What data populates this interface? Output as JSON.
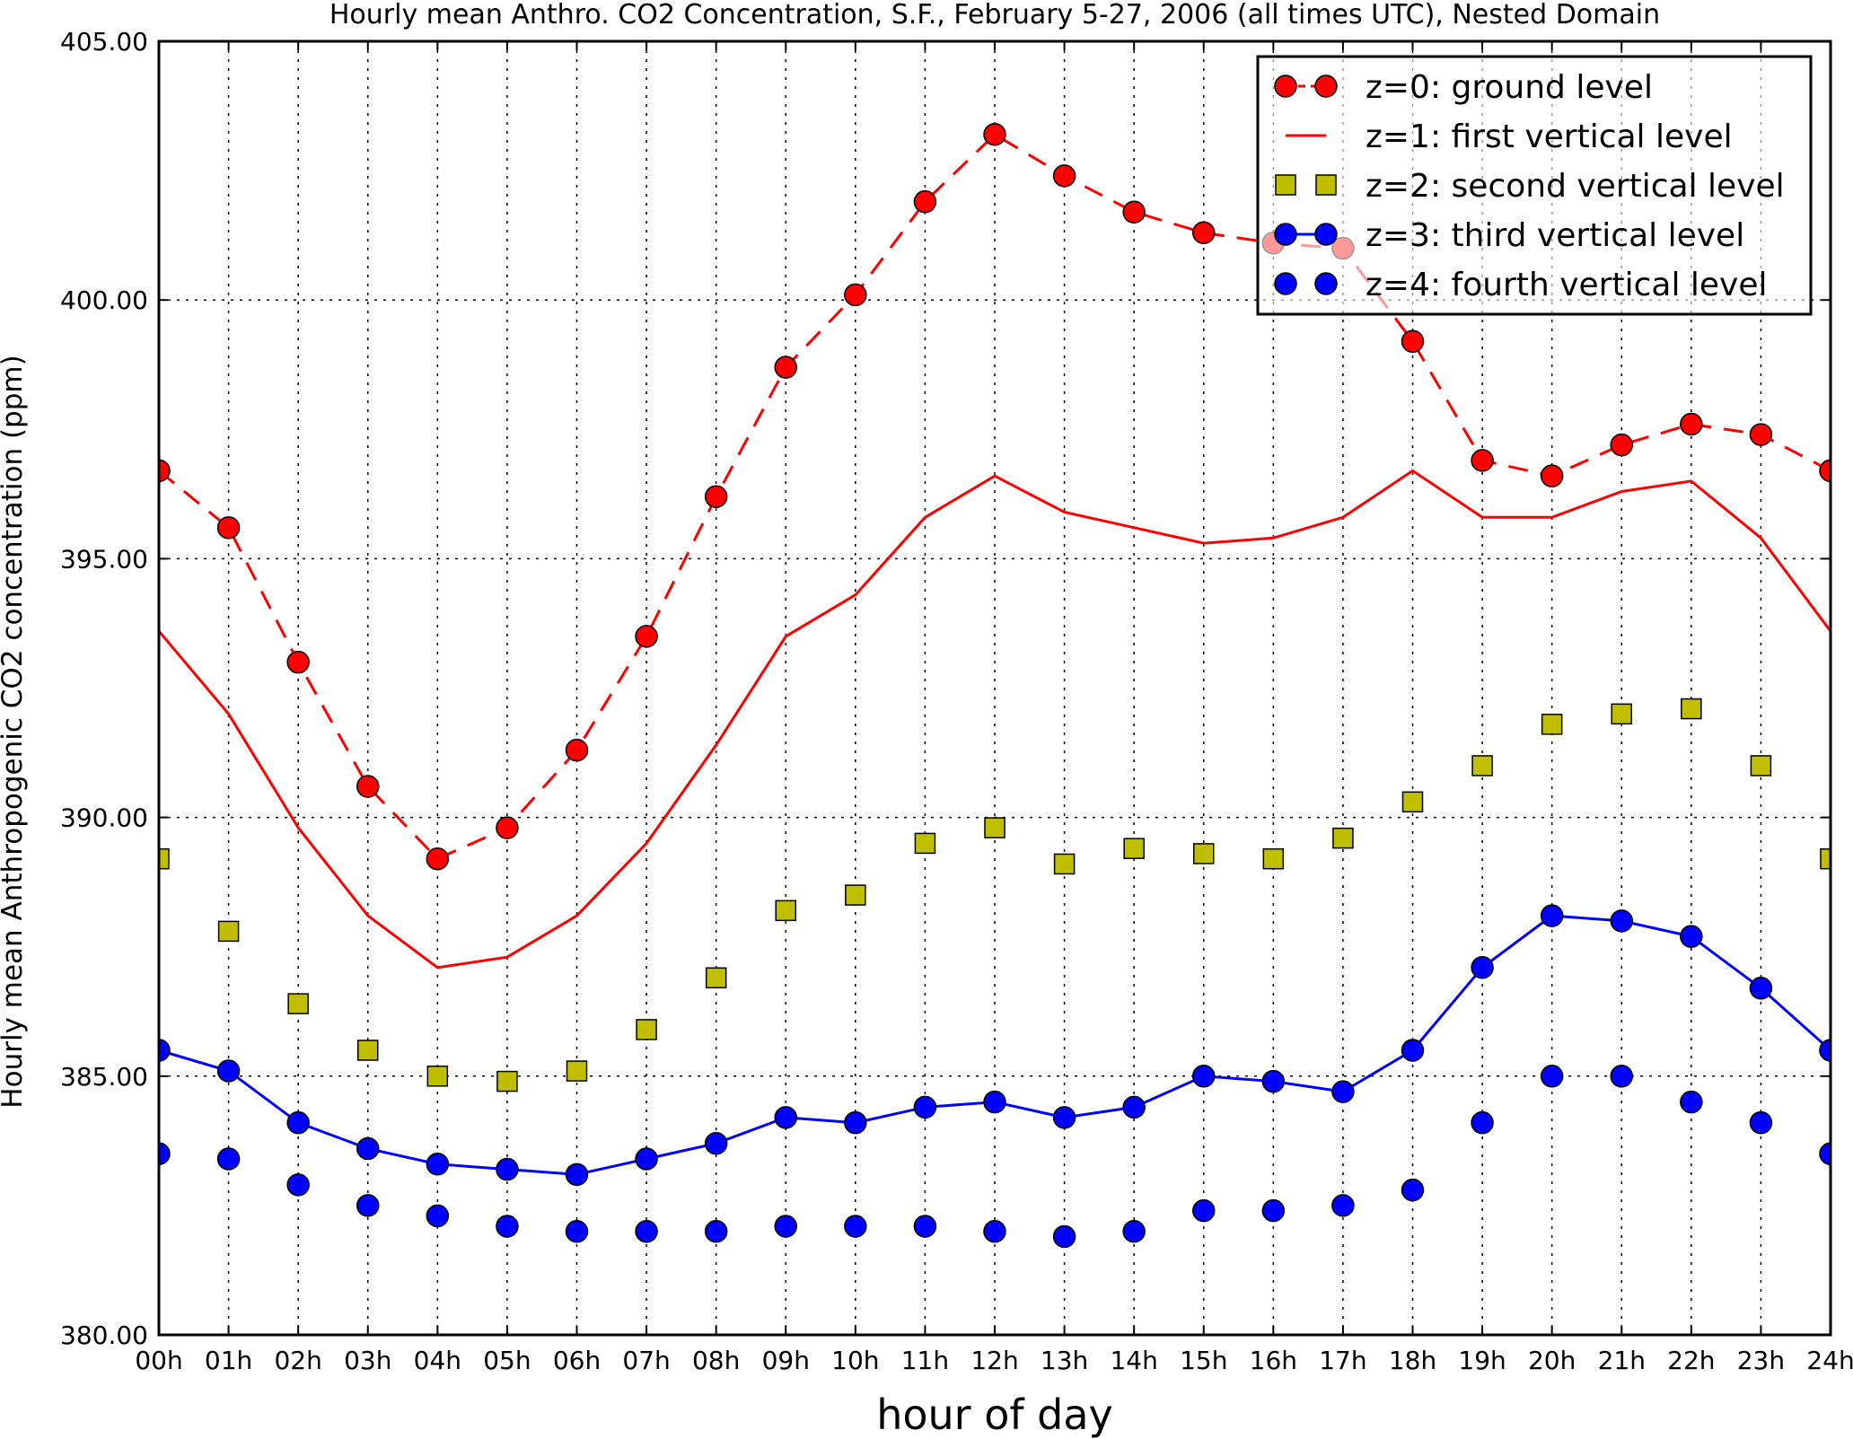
{
  "chart_data": {
    "type": "line",
    "title": "Hourly mean Anthro. CO2 Concentration, S.F., February 5-27, 2006 (all times UTC), Nested Domain",
    "xlabel": "hour of day",
    "ylabel": "Hourly mean Anthropogenic CO2 concentration (ppm)",
    "x": [
      0,
      1,
      2,
      3,
      4,
      5,
      6,
      7,
      8,
      9,
      10,
      11,
      12,
      13,
      14,
      15,
      16,
      17,
      18,
      19,
      20,
      21,
      22,
      23,
      24
    ],
    "xtick_labels": [
      "00h",
      "01h",
      "02h",
      "03h",
      "04h",
      "05h",
      "06h",
      "07h",
      "08h",
      "09h",
      "10h",
      "11h",
      "12h",
      "13h",
      "14h",
      "15h",
      "16h",
      "17h",
      "18h",
      "19h",
      "20h",
      "21h",
      "22h",
      "23h",
      "24h"
    ],
    "xlim": [
      0,
      24
    ],
    "ylim": [
      380,
      405
    ],
    "yticks": [
      380,
      385,
      390,
      395,
      400,
      405
    ],
    "ytick_labels": [
      "380.00",
      "385.00",
      "390.00",
      "395.00",
      "400.00",
      "405.00"
    ],
    "grid": true,
    "legend_position": "top-right",
    "series": [
      {
        "name": "z=0: ground level",
        "color": "#ff0000",
        "style": "dashed-line-circles",
        "values": [
          396.7,
          395.6,
          393.0,
          390.6,
          389.2,
          389.8,
          391.3,
          393.5,
          396.2,
          398.7,
          400.1,
          401.9,
          403.2,
          402.4,
          401.7,
          401.3,
          401.1,
          401.0,
          399.2,
          396.9,
          396.6,
          397.2,
          397.6,
          397.4,
          396.7
        ]
      },
      {
        "name": "z=1: first vertical level",
        "color": "#ff0000",
        "style": "solid-line",
        "values": [
          393.6,
          392.0,
          389.8,
          388.1,
          387.1,
          387.3,
          388.1,
          389.5,
          391.4,
          393.5,
          394.3,
          395.8,
          396.6,
          395.9,
          395.6,
          395.3,
          395.4,
          395.8,
          396.7,
          395.8,
          395.8,
          396.3,
          396.5,
          395.4,
          393.6
        ]
      },
      {
        "name": "z=2: second vertical level",
        "color": "#bfbf00",
        "style": "squares",
        "values": [
          389.2,
          387.8,
          386.4,
          385.5,
          385.0,
          384.9,
          385.1,
          385.9,
          386.9,
          388.2,
          388.5,
          389.5,
          389.8,
          389.1,
          389.4,
          389.3,
          389.2,
          389.6,
          390.3,
          391.0,
          391.8,
          392.0,
          392.1,
          391.0,
          389.2
        ]
      },
      {
        "name": "z=3: third vertical level",
        "color": "#0000ff",
        "style": "solid-line-circles",
        "values": [
          385.5,
          385.1,
          384.1,
          383.6,
          383.3,
          383.2,
          383.1,
          383.4,
          383.7,
          384.2,
          384.1,
          384.4,
          384.5,
          384.2,
          384.4,
          385.0,
          384.9,
          384.7,
          385.5,
          387.1,
          388.1,
          388.0,
          387.7,
          386.7,
          385.5
        ]
      },
      {
        "name": "z=4: fourth vertical level",
        "color": "#0000ff",
        "style": "circles",
        "values": [
          383.5,
          383.4,
          382.9,
          382.5,
          382.3,
          382.1,
          382.0,
          382.0,
          382.0,
          382.1,
          382.1,
          382.1,
          382.0,
          381.9,
          382.0,
          382.4,
          382.4,
          382.5,
          382.8,
          384.1,
          385.0,
          385.0,
          384.5,
          384.1,
          383.5
        ]
      }
    ]
  }
}
